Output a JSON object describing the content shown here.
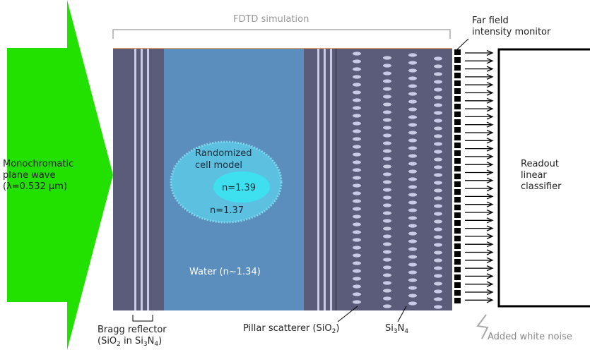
{
  "title": "FDTD simulation",
  "source": {
    "line1": "Monochromatic",
    "line2": "plane  wave",
    "line3": "(λ=0.532 µm)"
  },
  "monitor": {
    "line1": "Far field",
    "line2": "intensity monitor"
  },
  "cell": {
    "line1": "Randomized",
    "line2": "cell model",
    "n_inner": "n=1.39",
    "n_outer": "n=1.37"
  },
  "water": "Water (n~1.34)",
  "readout": {
    "line1": "Readout",
    "line2": "linear",
    "line3": "classifier"
  },
  "bragg": {
    "line1": "Bragg reflector",
    "paren_open": "(SiO",
    "sub1": "2",
    "mid": " in Si",
    "sub2": "3",
    "N": "N",
    "sub3": "4",
    "paren_close": ")"
  },
  "pillar": {
    "pre": "Pillar scatterer (SiO",
    "sub": "2",
    "post": ")"
  },
  "si3n4": {
    "si": "Si",
    "sub1": "3",
    "n": "N",
    "sub2": "4"
  },
  "noise": "Added white noise",
  "colors": {
    "green": "#22e000",
    "slab": "#5b5b7a",
    "water": "#5b8dbd",
    "cell_outer": "#5cc0e0",
    "cell_inner": "#3ee0f0",
    "pillar": "#c9cbe5",
    "bragg_line": "#c9cbe5"
  }
}
